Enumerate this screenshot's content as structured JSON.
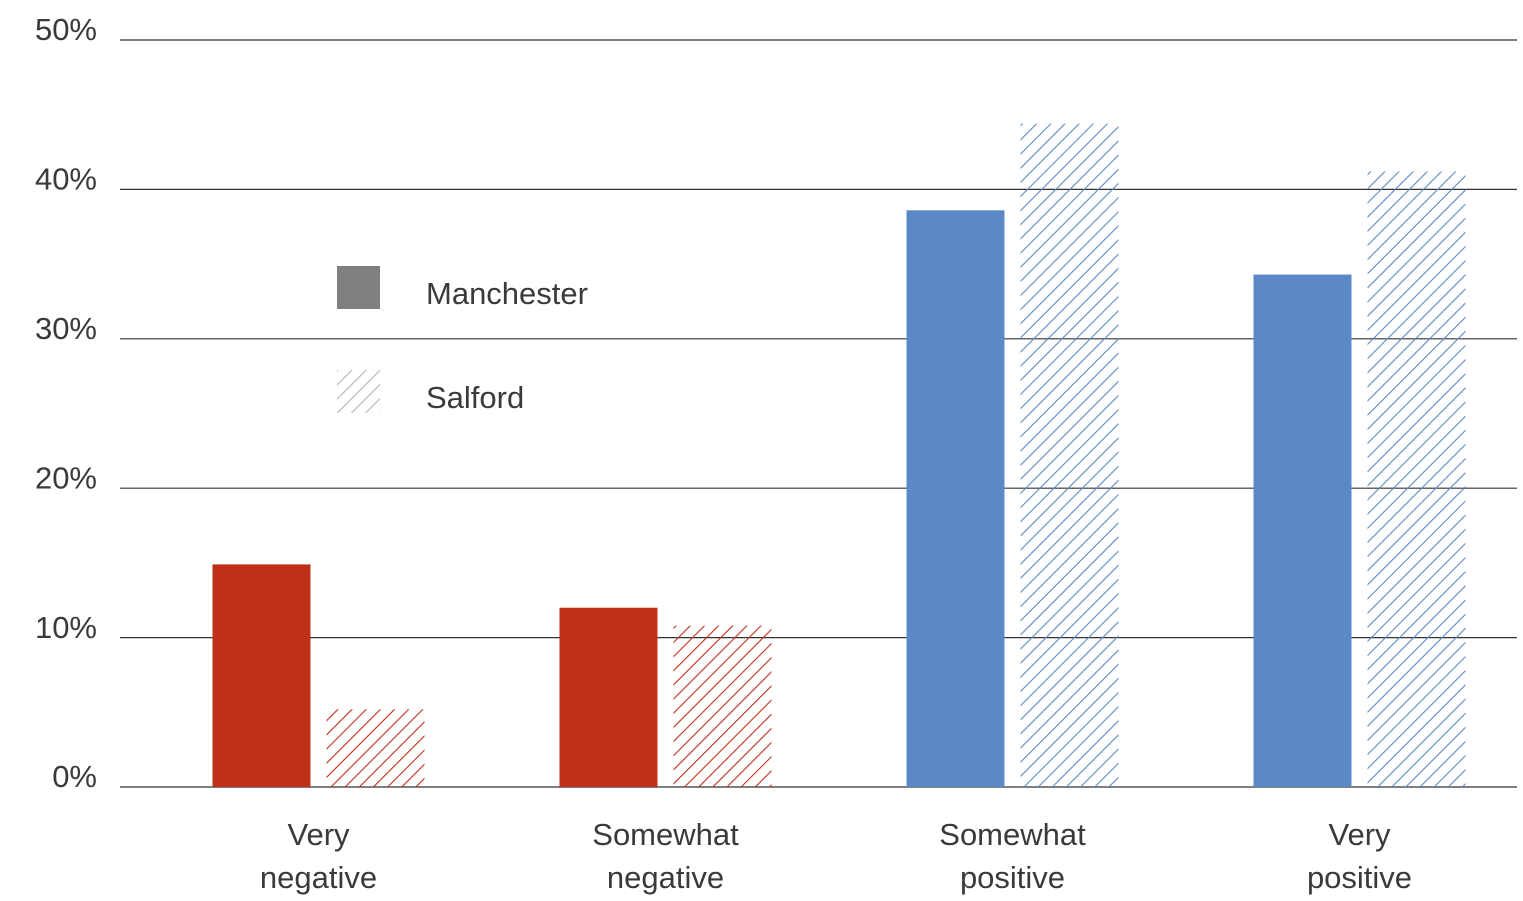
{
  "chart_data": {
    "type": "bar",
    "categories": [
      "Very negative",
      "Somewhat negative",
      "Somewhat positive",
      "Very positive"
    ],
    "category_colors": [
      "#be3019",
      "#be3019",
      "#5b89c5",
      "#5b89c5"
    ],
    "series": [
      {
        "name": "Manchester",
        "color": "#808083",
        "pattern": "solid",
        "values": [
          14.9,
          12.0,
          38.6,
          34.3
        ]
      },
      {
        "name": "Salford",
        "color": "#b5b5b5",
        "pattern": "hatch",
        "values": [
          5.2,
          10.8,
          44.4,
          41.2
        ]
      }
    ],
    "ylim": [
      0,
      50
    ],
    "yticks": [
      {
        "value": 0,
        "label": "0%"
      },
      {
        "value": 10,
        "label": "10%"
      },
      {
        "value": 20,
        "label": "20%"
      },
      {
        "value": 30,
        "label": "30%"
      },
      {
        "value": 40,
        "label": "40%"
      },
      {
        "value": 50,
        "label": "50%"
      }
    ],
    "grid": true
  }
}
